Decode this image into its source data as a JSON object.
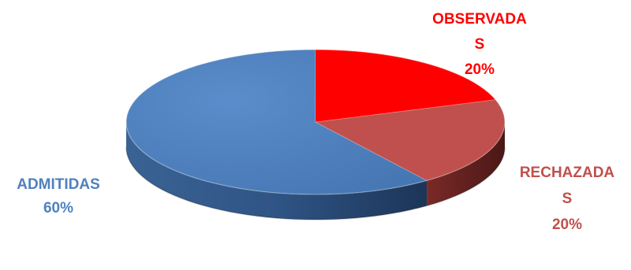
{
  "chart_data": {
    "type": "pie",
    "title": "",
    "categories": [
      "ADMITIDAS",
      "OBSERVADAS",
      "RECHAZADAS"
    ],
    "values": [
      60,
      20,
      20
    ],
    "unit": "%",
    "colors": [
      "#4F81BD",
      "#FF0000",
      "#C0504D"
    ],
    "labels": [
      {
        "lines": [
          "ADMITIDAS",
          "60%"
        ],
        "color": "#4F81BD"
      },
      {
        "lines": [
          "OBSERVADA",
          "S",
          "20%"
        ],
        "color": "#FF0000"
      },
      {
        "lines": [
          "RECHAZADA",
          "S",
          "20%"
        ],
        "color": "#C0504D"
      }
    ],
    "legend": "none",
    "style": "3d-pie"
  }
}
